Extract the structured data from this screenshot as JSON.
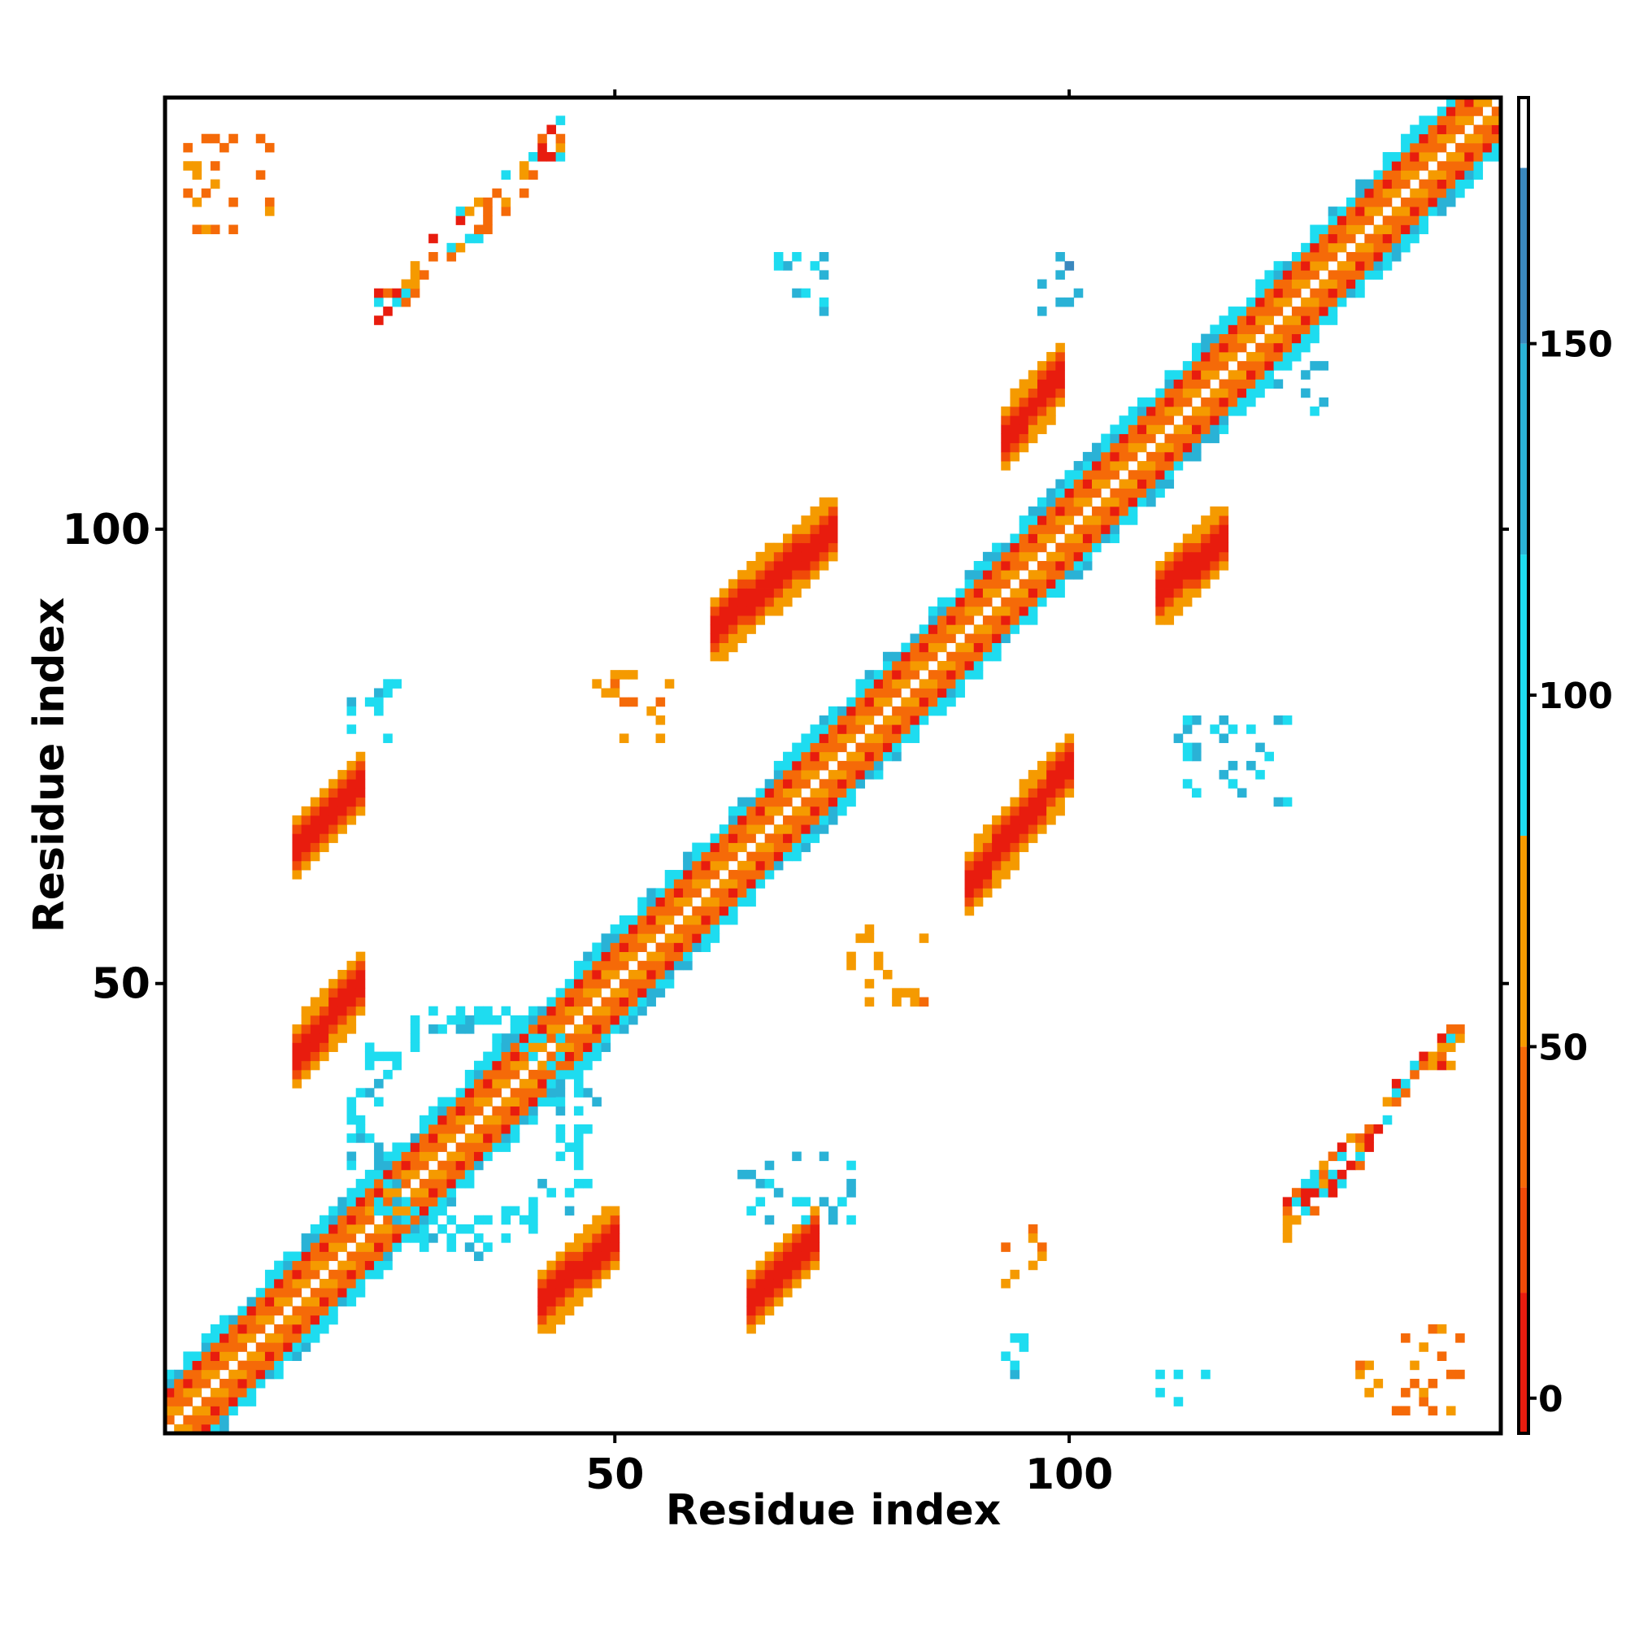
{
  "chart_data": {
    "type": "heatmap",
    "title": "",
    "xlabel": "Residue index",
    "ylabel": "Residue index",
    "xlim": [
      1,
      147
    ],
    "ylim": [
      1,
      147
    ],
    "x_ticks": [
      50,
      100
    ],
    "y_ticks": [
      50,
      100
    ],
    "grid": false,
    "legend": "right",
    "colorbar": {
      "range": [
        -5,
        185
      ],
      "ticks": [
        0,
        50,
        100,
        150
      ],
      "segments": [
        {
          "from": -5,
          "to": 15,
          "color": "#e81c0e"
        },
        {
          "from": 15,
          "to": 30,
          "color": "#f04a08"
        },
        {
          "from": 30,
          "to": 50,
          "color": "#f56a08"
        },
        {
          "from": 50,
          "to": 80,
          "color": "#f59a00"
        },
        {
          "from": 80,
          "to": 120,
          "color": "#1edcf0"
        },
        {
          "from": 120,
          "to": 150,
          "color": "#2ab2d6"
        },
        {
          "from": 150,
          "to": 175,
          "color": "#3a88be"
        },
        {
          "from": 175,
          "to": 185,
          "color": "#ffffff"
        }
      ]
    },
    "regions": [
      {
        "kind": "diagonal-band",
        "from": 1,
        "to": 147,
        "half_width": 6
      },
      {
        "kind": "blob",
        "x": [
          15,
          22
        ],
        "y": [
          42,
          50
        ],
        "slope": 1,
        "value": 10
      },
      {
        "kind": "blob",
        "x": [
          15,
          22
        ],
        "y": [
          65,
          72
        ],
        "slope": 1,
        "value": 10
      },
      {
        "kind": "blob",
        "x": [
          42,
          50
        ],
        "y": [
          15,
          22
        ],
        "slope": 1,
        "value": 10
      },
      {
        "kind": "blob",
        "x": [
          65,
          72
        ],
        "y": [
          15,
          22
        ],
        "slope": 1,
        "value": 10
      },
      {
        "kind": "blob",
        "x": [
          61,
          74
        ],
        "y": [
          89,
          100
        ],
        "slope": 1,
        "value": 10
      },
      {
        "kind": "blob",
        "x": [
          89,
          100
        ],
        "y": [
          61,
          74
        ],
        "slope": 1,
        "value": 10
      },
      {
        "kind": "blob",
        "x": [
          93,
          99
        ],
        "y": [
          110,
          117
        ],
        "slope": 1,
        "value": 10
      },
      {
        "kind": "blob",
        "x": [
          110,
          117
        ],
        "y": [
          93,
          99
        ],
        "slope": 1,
        "value": 10
      },
      {
        "kind": "ring",
        "cx": 34,
        "cy": 34,
        "r": 12,
        "value": 105
      },
      {
        "kind": "antidiag",
        "x": [
          24,
          44
        ],
        "y": [
          124,
          143
        ],
        "value": 40
      },
      {
        "kind": "antidiag",
        "x": [
          124,
          143
        ],
        "y": [
          24,
          44
        ],
        "value": 40
      },
      {
        "kind": "scatter",
        "x": [
          3,
          12
        ],
        "y": [
          132,
          143
        ],
        "value": 45
      },
      {
        "kind": "scatter",
        "x": [
          132,
          143
        ],
        "y": [
          3,
          12
        ],
        "value": 45
      },
      {
        "kind": "scatter",
        "x": [
          20,
          26
        ],
        "y": [
          77,
          84
        ],
        "value": 110
      },
      {
        "kind": "scatter",
        "x": [
          48,
          56
        ],
        "y": [
          77,
          84
        ],
        "value": 60
      },
      {
        "kind": "scatter",
        "x": [
          76,
          84
        ],
        "y": [
          48,
          56
        ],
        "value": 60
      },
      {
        "kind": "scatter",
        "x": [
          112,
          124
        ],
        "y": [
          70,
          80
        ],
        "value": 120
      },
      {
        "kind": "scatter",
        "x": [
          68,
          74
        ],
        "y": [
          124,
          131
        ],
        "value": 115
      },
      {
        "kind": "scatter",
        "x": [
          97,
          101
        ],
        "y": [
          124,
          130
        ],
        "value": 140
      },
      {
        "kind": "scatter",
        "x": [
          123,
          128
        ],
        "y": [
          113,
          119
        ],
        "value": 130
      },
      {
        "kind": "scatter",
        "x": [
          64,
          76
        ],
        "y": [
          24,
          31
        ],
        "value": 120
      },
      {
        "kind": "scatter",
        "x": [
          93,
          97
        ],
        "y": [
          17,
          23
        ],
        "value": 55
      },
      {
        "kind": "scatter",
        "x": [
          92,
          96
        ],
        "y": [
          6,
          11
        ],
        "value": 110
      },
      {
        "kind": "scatter",
        "x": [
          110,
          116
        ],
        "y": [
          4,
          7
        ],
        "value": 95
      }
    ]
  }
}
